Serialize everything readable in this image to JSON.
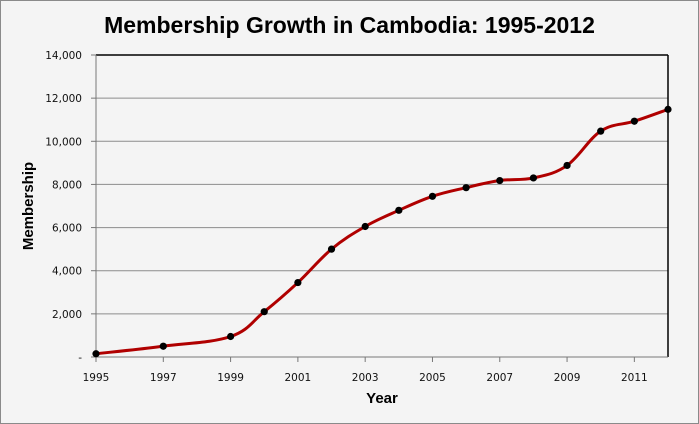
{
  "chart_data": {
    "type": "line",
    "title": "Membership Growth in Cambodia: 1995-2012",
    "xlabel": "Year",
    "ylabel": "Membership",
    "x": [
      1995,
      1997,
      1999,
      2000,
      2001,
      2002,
      2003,
      2004,
      2005,
      2006,
      2007,
      2008,
      2009,
      2010,
      2011,
      2012
    ],
    "series": [
      {
        "name": "Membership",
        "values": [
          150,
          500,
          950,
          2100,
          3450,
          5000,
          6050,
          6800,
          7450,
          7850,
          8180,
          8300,
          8880,
          10470,
          10930,
          11480
        ],
        "color": "#b00000",
        "marker_color": "#000000",
        "smooth": true
      }
    ],
    "xticks": [
      "1995",
      "1997",
      "1999",
      "2001",
      "2003",
      "2005",
      "2007",
      "2009",
      "2011"
    ],
    "yticks": [
      "-",
      "2,000",
      "4,000",
      "6,000",
      "8,000",
      "10,000",
      "12,000",
      "14,000"
    ],
    "ylim": [
      0,
      14000
    ],
    "xlim": [
      1995,
      2012
    ],
    "grid": "horizontal",
    "legend": "none"
  },
  "colors": {
    "background": "#f4f4f4",
    "line": "#b00000",
    "gridline": "#8c8c8c",
    "plot_border": "#000000"
  }
}
